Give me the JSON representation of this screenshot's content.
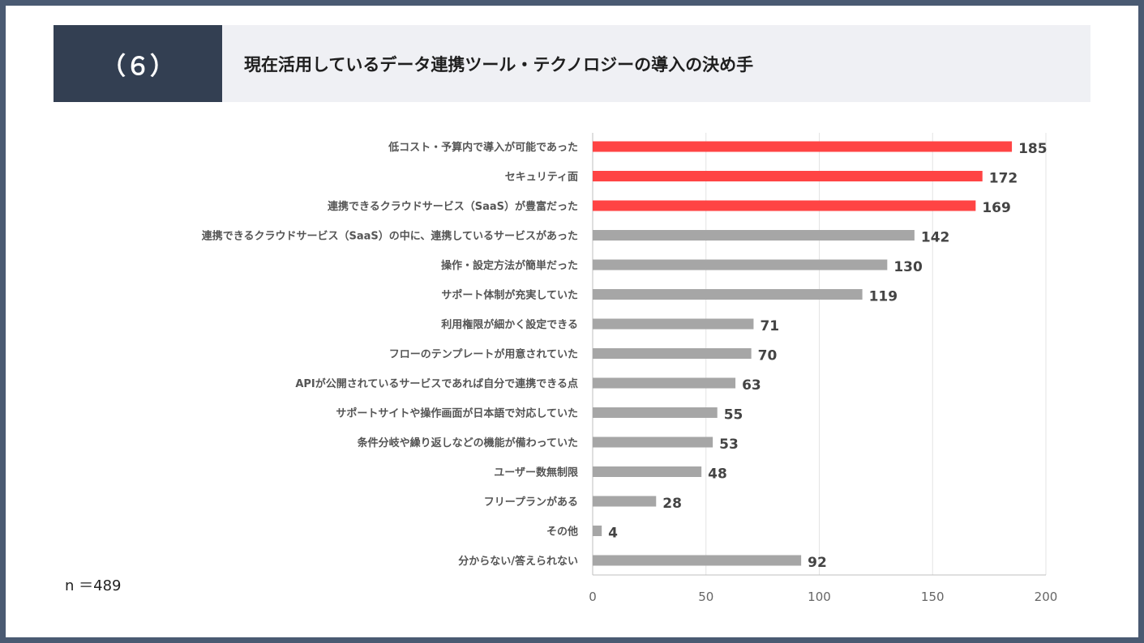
{
  "header": {
    "number": "（６）",
    "title": "現在活用しているデータ連携ツール・テクノロジーの導入の決め手"
  },
  "sample_note": "n ＝489",
  "colors": {
    "highlight": "#ff4444",
    "normal": "#a6a6a6",
    "header_dark": "#333f52",
    "header_light": "#eff0f4",
    "frame": "#4a5a72"
  },
  "chart_data": {
    "type": "bar",
    "orientation": "horizontal",
    "categories": [
      "低コスト・予算内で導入が可能であった",
      "セキュリティ面",
      "連携できるクラウドサービス（SaaS）が豊富だった",
      "連携できるクラウドサービス（SaaS）の中に、連携しているサービスがあった",
      "操作・設定方法が簡単だった",
      "サポート体制が充実していた",
      "利用権限が細かく設定できる",
      "フローのテンプレートが用意されていた",
      "APIが公開されているサービスであれば自分で連携できる点",
      "サポートサイトや操作画面が日本語で対応していた",
      "条件分岐や繰り返しなどの機能が備わっていた",
      "ユーザー数無制限",
      "フリープランがある",
      "その他",
      "分からない/答えられない"
    ],
    "values": [
      185,
      172,
      169,
      142,
      130,
      119,
      71,
      70,
      63,
      55,
      53,
      48,
      28,
      4,
      92
    ],
    "highlighted": [
      true,
      true,
      true,
      false,
      false,
      false,
      false,
      false,
      false,
      false,
      false,
      false,
      false,
      false,
      false
    ],
    "xlim": [
      0,
      200
    ],
    "xticks": [
      "0",
      "50",
      "100",
      "150",
      "200"
    ],
    "grid": true
  }
}
